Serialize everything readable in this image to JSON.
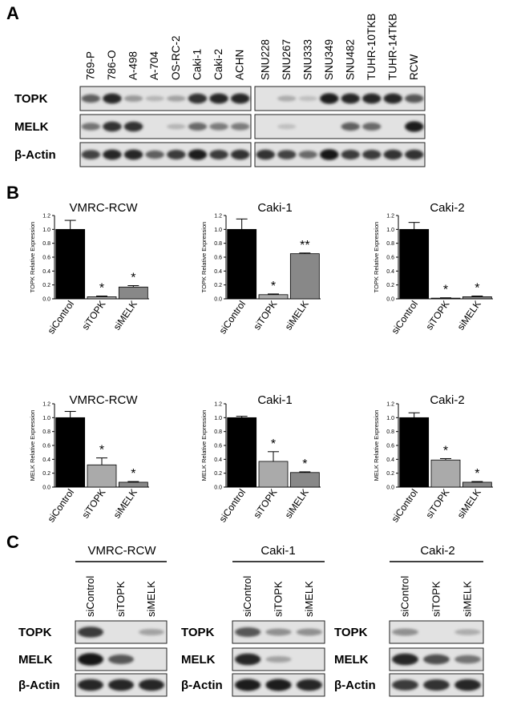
{
  "panels": {
    "A": "A",
    "B": "B",
    "C": "C"
  },
  "panel_a": {
    "cell_lines_left": [
      "769-P",
      "786-O",
      "A-498",
      "A-704",
      "OS-RC-2",
      "Caki-1",
      "Caki-2",
      "ACHN"
    ],
    "cell_lines_right": [
      "SNU228",
      "SNU267",
      "SNU333",
      "SNU349",
      "SNU482",
      "TUHR-10TKB",
      "TUHR-14TKB",
      "RCW"
    ],
    "rows": [
      "TOPK",
      "MELK",
      "β-Actin"
    ],
    "intensity": {
      "TOPK": [
        0.55,
        0.85,
        0.25,
        0.1,
        0.2,
        0.8,
        0.85,
        0.85,
        0.0,
        0.15,
        0.05,
        0.9,
        0.85,
        0.85,
        0.85,
        0.6
      ],
      "MELK": [
        0.45,
        0.8,
        0.8,
        0.0,
        0.1,
        0.5,
        0.4,
        0.4,
        0.0,
        0.05,
        0.0,
        0.0,
        0.55,
        0.5,
        0.0,
        0.9
      ],
      "β-Actin": [
        0.7,
        0.85,
        0.85,
        0.55,
        0.75,
        0.9,
        0.75,
        0.8,
        0.8,
        0.7,
        0.5,
        0.95,
        0.75,
        0.75,
        0.8,
        0.8
      ]
    }
  },
  "chart_data": [
    {
      "type": "bar",
      "title": "VMRC-RCW",
      "ylabel": "TOPK Relative Expression",
      "categories": [
        "siControl",
        "siTOPK",
        "siMELK"
      ],
      "values": [
        1.0,
        0.03,
        0.17
      ],
      "errors": [
        0.13,
        0.01,
        0.02
      ],
      "significance": [
        "",
        "*",
        "*"
      ],
      "colors": [
        "#000000",
        "#aaaaaa",
        "#888888"
      ],
      "yticks": [
        "0.0",
        "0.2",
        "0.4",
        "0.6",
        "0.8",
        "1.0",
        "1.2"
      ],
      "ylim": [
        0,
        1.2
      ]
    },
    {
      "type": "bar",
      "title": "Caki-1",
      "ylabel": "TOPK Relative Expression",
      "categories": [
        "siControl",
        "siTOPK",
        "siMELK"
      ],
      "values": [
        1.0,
        0.06,
        0.65
      ],
      "errors": [
        0.15,
        0.01,
        0.01
      ],
      "significance": [
        "",
        "*",
        "**"
      ],
      "colors": [
        "#000000",
        "#aaaaaa",
        "#888888"
      ],
      "yticks": [
        "0.0",
        "0.2",
        "0.4",
        "0.6",
        "0.8",
        "1.0",
        "1.2"
      ],
      "ylim": [
        0,
        1.2
      ]
    },
    {
      "type": "bar",
      "title": "Caki-2",
      "ylabel": "TOPK Relative Expression",
      "categories": [
        "siControl",
        "siTOPK",
        "siMELK"
      ],
      "values": [
        1.0,
        0.01,
        0.03
      ],
      "errors": [
        0.1,
        0.005,
        0.01
      ],
      "significance": [
        "",
        "*",
        "*"
      ],
      "colors": [
        "#000000",
        "#aaaaaa",
        "#888888"
      ],
      "yticks": [
        "0.0",
        "0.2",
        "0.4",
        "0.6",
        "0.8",
        "1.0",
        "1.2"
      ],
      "ylim": [
        0,
        1.2
      ]
    },
    {
      "type": "bar",
      "title": "VMRC-RCW",
      "ylabel": "MELK Relative Expression",
      "categories": [
        "siControl",
        "siTOPK",
        "siMELK"
      ],
      "values": [
        1.0,
        0.32,
        0.07
      ],
      "errors": [
        0.09,
        0.1,
        0.01
      ],
      "significance": [
        "",
        "*",
        "*"
      ],
      "colors": [
        "#000000",
        "#aaaaaa",
        "#888888"
      ],
      "yticks": [
        "0.0",
        "0.2",
        "0.4",
        "0.6",
        "0.8",
        "1.0",
        "1.2"
      ],
      "ylim": [
        0,
        1.2
      ]
    },
    {
      "type": "bar",
      "title": "Caki-1",
      "ylabel": "MELK Relative Expression",
      "categories": [
        "siControl",
        "siTOPK",
        "siMELK"
      ],
      "values": [
        1.0,
        0.37,
        0.21
      ],
      "errors": [
        0.02,
        0.14,
        0.01
      ],
      "significance": [
        "",
        "*",
        "*"
      ],
      "colors": [
        "#000000",
        "#aaaaaa",
        "#888888"
      ],
      "yticks": [
        "0.0",
        "0.2",
        "0.4",
        "0.6",
        "0.8",
        "1.0",
        "1.2"
      ],
      "ylim": [
        0,
        1.2
      ]
    },
    {
      "type": "bar",
      "title": "Caki-2",
      "ylabel": "MELK Relative Expression",
      "categories": [
        "siControl",
        "siTOPK",
        "siMELK"
      ],
      "values": [
        1.0,
        0.39,
        0.07
      ],
      "errors": [
        0.07,
        0.02,
        0.01
      ],
      "significance": [
        "",
        "*",
        "*"
      ],
      "colors": [
        "#000000",
        "#aaaaaa",
        "#888888"
      ],
      "yticks": [
        "0.0",
        "0.2",
        "0.4",
        "0.6",
        "0.8",
        "1.0",
        "1.2"
      ],
      "ylim": [
        0,
        1.2
      ]
    }
  ],
  "panel_c": {
    "groups": [
      "VMRC-RCW",
      "Caki-1",
      "Caki-2"
    ],
    "lanes": [
      "siControl",
      "siTOPK",
      "siMELK"
    ],
    "rows": [
      "TOPK",
      "MELK",
      "β-Actin"
    ],
    "intensity": [
      {
        "TOPK": [
          0.75,
          0.0,
          0.2
        ],
        "MELK": [
          0.95,
          0.6,
          0.0
        ],
        "β-Actin": [
          0.85,
          0.85,
          0.85
        ]
      },
      {
        "TOPK": [
          0.6,
          0.3,
          0.3
        ],
        "MELK": [
          0.85,
          0.2,
          0.0
        ],
        "β-Actin": [
          0.9,
          0.9,
          0.85
        ]
      },
      {
        "TOPK": [
          0.3,
          0.0,
          0.15
        ],
        "MELK": [
          0.85,
          0.65,
          0.45
        ],
        "β-Actin": [
          0.75,
          0.8,
          0.85
        ]
      }
    ]
  }
}
